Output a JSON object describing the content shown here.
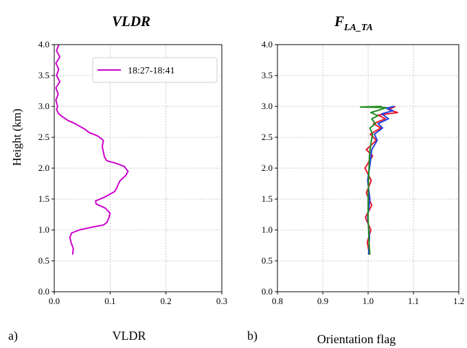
{
  "chart_data": [
    {
      "type": "line",
      "panel_label": "a)",
      "title": "VLDR",
      "xlabel": "VLDR",
      "ylabel": "Height (km)",
      "xlim": [
        0.0,
        0.3
      ],
      "ylim": [
        0.0,
        4.0
      ],
      "x_ticks": [
        "0.0",
        "0.1",
        "0.2",
        "0.3"
      ],
      "y_ticks": [
        "0.0",
        "0.5",
        "1.0",
        "1.5",
        "2.0",
        "2.5",
        "3.0",
        "3.5",
        "4.0"
      ],
      "grid": true,
      "legend": "top-right",
      "series": [
        {
          "name": "18:27-18:41",
          "color": "#cc00cc",
          "points": [
            [
              0.033,
              0.6
            ],
            [
              0.034,
              0.7
            ],
            [
              0.03,
              0.8
            ],
            [
              0.028,
              0.88
            ],
            [
              0.031,
              0.95
            ],
            [
              0.045,
              1.0
            ],
            [
              0.07,
              1.05
            ],
            [
              0.088,
              1.08
            ],
            [
              0.094,
              1.12
            ],
            [
              0.098,
              1.2
            ],
            [
              0.1,
              1.27
            ],
            [
              0.092,
              1.35
            ],
            [
              0.075,
              1.42
            ],
            [
              0.074,
              1.47
            ],
            [
              0.09,
              1.53
            ],
            [
              0.1,
              1.58
            ],
            [
              0.108,
              1.62
            ],
            [
              0.112,
              1.68
            ],
            [
              0.114,
              1.73
            ],
            [
              0.118,
              1.8
            ],
            [
              0.128,
              1.88
            ],
            [
              0.132,
              1.95
            ],
            [
              0.125,
              2.03
            ],
            [
              0.11,
              2.08
            ],
            [
              0.094,
              2.12
            ],
            [
              0.09,
              2.18
            ],
            [
              0.088,
              2.26
            ],
            [
              0.086,
              2.35
            ],
            [
              0.088,
              2.45
            ],
            [
              0.078,
              2.52
            ],
            [
              0.062,
              2.58
            ],
            [
              0.055,
              2.63
            ],
            [
              0.045,
              2.68
            ],
            [
              0.035,
              2.73
            ],
            [
              0.025,
              2.77
            ],
            [
              0.015,
              2.83
            ],
            [
              0.008,
              2.88
            ],
            [
              0.004,
              2.95
            ],
            [
              0.006,
              3.0
            ],
            [
              0.003,
              3.1
            ],
            [
              0.007,
              3.2
            ],
            [
              0.003,
              3.3
            ],
            [
              0.01,
              3.4
            ],
            [
              0.004,
              3.5
            ],
            [
              0.008,
              3.6
            ],
            [
              0.003,
              3.7
            ],
            [
              0.01,
              3.8
            ],
            [
              0.004,
              3.9
            ],
            [
              0.008,
              4.0
            ]
          ]
        }
      ]
    },
    {
      "type": "line",
      "panel_label": "b)",
      "title_main": "F",
      "title_sub": "LA_TA",
      "xlabel": "Orientation flag",
      "ylabel": "",
      "xlim": [
        0.8,
        1.2
      ],
      "ylim": [
        0.0,
        4.0
      ],
      "x_ticks": [
        "0.8",
        "0.9",
        "1.0",
        "1.1",
        "1.2"
      ],
      "y_ticks": [
        "0.0",
        "0.5",
        "1.0",
        "1.5",
        "2.0",
        "2.5",
        "3.0",
        "3.5",
        "4.0"
      ],
      "grid": true,
      "series": [
        {
          "color": "#e8192c",
          "points": [
            [
              1.003,
              0.6
            ],
            [
              0.998,
              0.8
            ],
            [
              1.006,
              1.0
            ],
            [
              0.994,
              1.2
            ],
            [
              1.008,
              1.4
            ],
            [
              0.996,
              1.6
            ],
            [
              1.007,
              1.8
            ],
            [
              0.993,
              2.0
            ],
            [
              1.01,
              2.2
            ],
            [
              0.996,
              2.3
            ],
            [
              1.018,
              2.45
            ],
            [
              1.005,
              2.55
            ],
            [
              1.028,
              2.65
            ],
            [
              1.012,
              2.72
            ],
            [
              1.038,
              2.8
            ],
            [
              1.022,
              2.86
            ],
            [
              1.065,
              2.9
            ],
            [
              1.045,
              2.95
            ],
            [
              1.06,
              3.0
            ]
          ]
        },
        {
          "color": "#1f3de6",
          "points": [
            [
              1.001,
              0.6
            ],
            [
              1.003,
              0.9
            ],
            [
              0.999,
              1.2
            ],
            [
              1.004,
              1.5
            ],
            [
              0.999,
              1.8
            ],
            [
              1.005,
              2.1
            ],
            [
              1.008,
              2.3
            ],
            [
              1.02,
              2.45
            ],
            [
              1.014,
              2.55
            ],
            [
              1.032,
              2.65
            ],
            [
              1.022,
              2.72
            ],
            [
              1.045,
              2.8
            ],
            [
              1.03,
              2.88
            ],
            [
              1.055,
              2.93
            ],
            [
              1.04,
              2.97
            ],
            [
              1.058,
              3.0
            ]
          ]
        },
        {
          "color": "#1f8a1f",
          "points": [
            [
              1.004,
              0.6
            ],
            [
              1.002,
              0.8
            ],
            [
              1.001,
              1.0
            ],
            [
              1.0,
              1.2
            ],
            [
              1.0,
              1.5
            ],
            [
              1.001,
              1.8
            ],
            [
              1.002,
              2.0
            ],
            [
              1.003,
              2.2
            ],
            [
              1.006,
              2.4
            ],
            [
              1.01,
              2.55
            ],
            [
              1.004,
              2.65
            ],
            [
              1.016,
              2.72
            ],
            [
              1.008,
              2.8
            ],
            [
              1.022,
              2.85
            ],
            [
              1.006,
              2.9
            ],
            [
              1.028,
              2.95
            ],
            [
              1.04,
              2.98
            ],
            [
              0.983,
              2.99
            ],
            [
              1.03,
              3.0
            ]
          ]
        }
      ]
    }
  ]
}
